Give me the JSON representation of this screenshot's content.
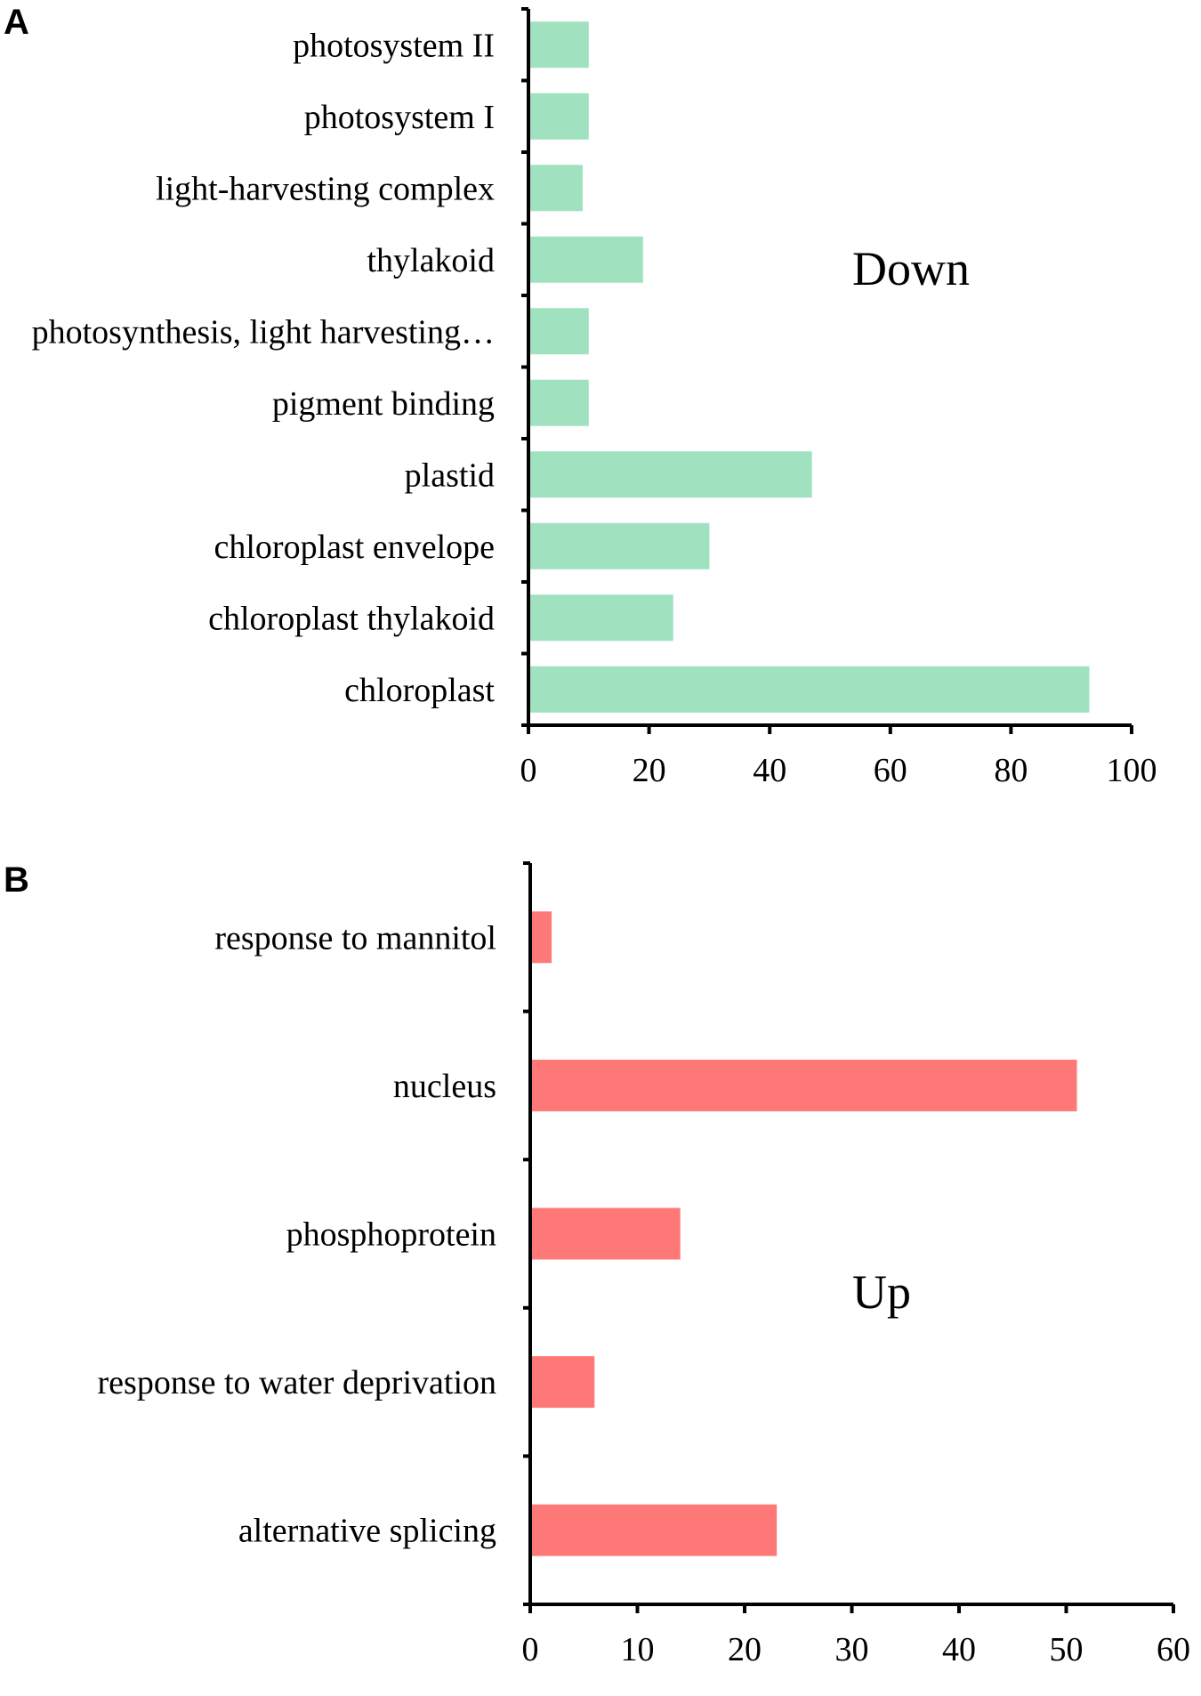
{
  "chart_data": [
    {
      "type": "bar",
      "orientation": "horizontal",
      "panel": "A",
      "annotation": "Down",
      "categories": [
        "photosystem II",
        "photosystem I",
        "light-harvesting complex",
        "thylakoid",
        "photosynthesis, light harvesting…",
        "pigment binding",
        "plastid",
        "chloroplast envelope",
        "chloroplast thylakoid",
        "chloroplast"
      ],
      "values": [
        10,
        10,
        9,
        19,
        10,
        10,
        47,
        30,
        24,
        93
      ],
      "xlim": [
        0,
        100
      ],
      "xticks": [
        "0",
        "20",
        "40",
        "60",
        "80",
        "100"
      ],
      "color": "#a0e2c0",
      "grid": false,
      "title": "",
      "xlabel": "",
      "ylabel": ""
    },
    {
      "type": "bar",
      "orientation": "horizontal",
      "panel": "B",
      "annotation": "Up",
      "categories": [
        "response to mannitol",
        "nucleus",
        "phosphoprotein",
        "response to water deprivation",
        "alternative splicing"
      ],
      "values": [
        2,
        51,
        14,
        6,
        23
      ],
      "xlim": [
        0,
        60
      ],
      "xticks": [
        "0",
        "10",
        "20",
        "30",
        "40",
        "50",
        "60"
      ],
      "color": "#ff7878",
      "grid": false,
      "title": "",
      "xlabel": "",
      "ylabel": ""
    }
  ]
}
